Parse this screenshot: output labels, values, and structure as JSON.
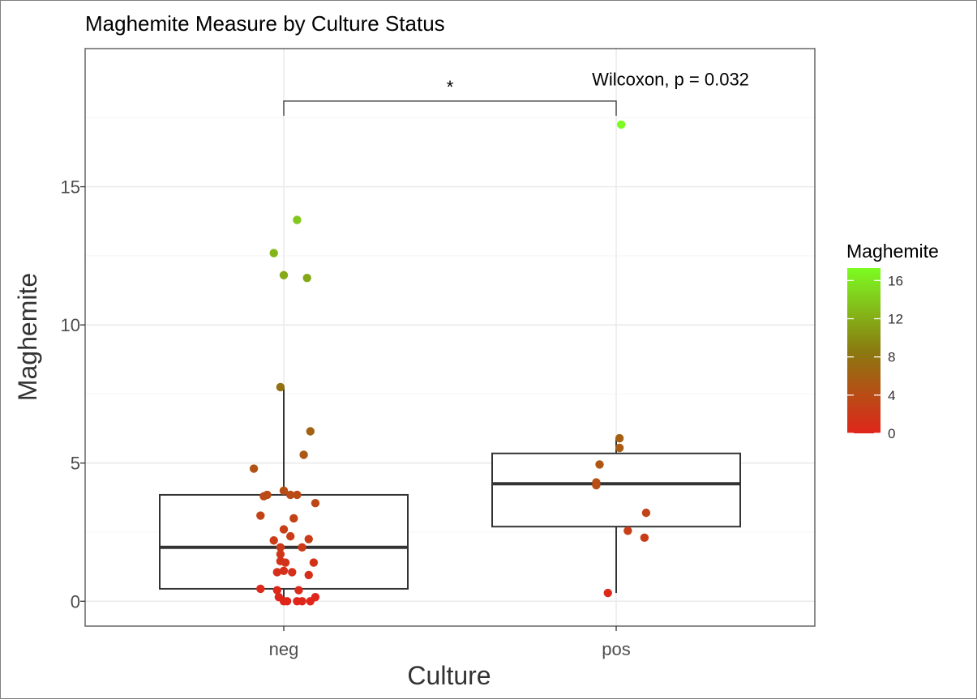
{
  "chart_data": {
    "type": "box",
    "title": "Maghemite Measure by Culture Status",
    "xlabel": "Culture",
    "ylabel": "Maghemite",
    "categories": [
      "neg",
      "pos"
    ],
    "ylim": [
      -0.9,
      20
    ],
    "y_ticks": [
      0,
      5,
      10,
      15
    ],
    "y_tick_labels": [
      "0",
      "5",
      "10",
      "15"
    ],
    "grid": true,
    "boxes": [
      {
        "category": "neg",
        "lower_whisker": 0.0,
        "q1": 0.45,
        "median": 1.95,
        "q3": 3.85,
        "upper_whisker": 7.75
      },
      {
        "category": "pos",
        "lower_whisker": 0.3,
        "q1": 2.7,
        "median": 4.25,
        "q3": 5.35,
        "upper_whisker": 5.9
      }
    ],
    "points": [
      {
        "category": "neg",
        "jitter": 0.04,
        "y": 13.8
      },
      {
        "category": "neg",
        "jitter": -0.03,
        "y": 12.6
      },
      {
        "category": "neg",
        "jitter": 0.0,
        "y": 11.8
      },
      {
        "category": "neg",
        "jitter": 0.07,
        "y": 11.7
      },
      {
        "category": "neg",
        "jitter": -0.01,
        "y": 7.75
      },
      {
        "category": "neg",
        "jitter": 0.08,
        "y": 6.15
      },
      {
        "category": "neg",
        "jitter": 0.06,
        "y": 5.3
      },
      {
        "category": "neg",
        "jitter": -0.09,
        "y": 4.8
      },
      {
        "category": "neg",
        "jitter": 0.0,
        "y": 4.0
      },
      {
        "category": "neg",
        "jitter": -0.06,
        "y": 3.8
      },
      {
        "category": "neg",
        "jitter": -0.05,
        "y": 3.85
      },
      {
        "category": "neg",
        "jitter": 0.02,
        "y": 3.85
      },
      {
        "category": "neg",
        "jitter": 0.04,
        "y": 3.85
      },
      {
        "category": "neg",
        "jitter": 0.095,
        "y": 3.55
      },
      {
        "category": "neg",
        "jitter": -0.07,
        "y": 3.1
      },
      {
        "category": "neg",
        "jitter": 0.03,
        "y": 3.0
      },
      {
        "category": "neg",
        "jitter": 0.0,
        "y": 2.6
      },
      {
        "category": "neg",
        "jitter": 0.02,
        "y": 2.35
      },
      {
        "category": "neg",
        "jitter": -0.03,
        "y": 2.2
      },
      {
        "category": "neg",
        "jitter": 0.075,
        "y": 2.25
      },
      {
        "category": "neg",
        "jitter": -0.01,
        "y": 1.95
      },
      {
        "category": "neg",
        "jitter": 0.055,
        "y": 1.95
      },
      {
        "category": "neg",
        "jitter": -0.01,
        "y": 1.7
      },
      {
        "category": "neg",
        "jitter": -0.01,
        "y": 1.45
      },
      {
        "category": "neg",
        "jitter": 0.005,
        "y": 1.4
      },
      {
        "category": "neg",
        "jitter": 0.09,
        "y": 1.4
      },
      {
        "category": "neg",
        "jitter": -0.02,
        "y": 1.05
      },
      {
        "category": "neg",
        "jitter": 0.0,
        "y": 1.1
      },
      {
        "category": "neg",
        "jitter": 0.025,
        "y": 1.05
      },
      {
        "category": "neg",
        "jitter": 0.075,
        "y": 0.95
      },
      {
        "category": "neg",
        "jitter": -0.07,
        "y": 0.45
      },
      {
        "category": "neg",
        "jitter": -0.02,
        "y": 0.4
      },
      {
        "category": "neg",
        "jitter": 0.045,
        "y": 0.4
      },
      {
        "category": "neg",
        "jitter": -0.015,
        "y": 0.15
      },
      {
        "category": "neg",
        "jitter": 0.0,
        "y": 0.0
      },
      {
        "category": "neg",
        "jitter": 0.01,
        "y": 0.0
      },
      {
        "category": "neg",
        "jitter": 0.04,
        "y": 0.0
      },
      {
        "category": "neg",
        "jitter": 0.055,
        "y": 0.0
      },
      {
        "category": "neg",
        "jitter": 0.08,
        "y": 0.0
      },
      {
        "category": "neg",
        "jitter": 0.095,
        "y": 0.15
      },
      {
        "category": "pos",
        "jitter": 0.015,
        "y": 17.25
      },
      {
        "category": "pos",
        "jitter": 0.01,
        "y": 5.9
      },
      {
        "category": "pos",
        "jitter": 0.01,
        "y": 5.55
      },
      {
        "category": "pos",
        "jitter": -0.05,
        "y": 4.95
      },
      {
        "category": "pos",
        "jitter": -0.06,
        "y": 4.3
      },
      {
        "category": "pos",
        "jitter": -0.06,
        "y": 4.2
      },
      {
        "category": "pos",
        "jitter": 0.09,
        "y": 3.2
      },
      {
        "category": "pos",
        "jitter": 0.035,
        "y": 2.55
      },
      {
        "category": "pos",
        "jitter": 0.085,
        "y": 2.3
      },
      {
        "category": "pos",
        "jitter": -0.025,
        "y": 0.3
      }
    ],
    "significance": {
      "from": "neg",
      "to": "pos",
      "y": 18.1,
      "label": "*",
      "test_label": "Wilcoxon, p = 0.032",
      "test_label_y": 18.9
    },
    "legend": {
      "title": "Maghemite",
      "placement": "right",
      "range": [
        0,
        17.3
      ],
      "ticks": [
        0,
        4,
        8,
        12,
        16
      ],
      "tick_labels": [
        "0",
        "4",
        "8",
        "12",
        "16"
      ],
      "low_color": "#e0251a",
      "mid_color": "#8a7a10",
      "high_color": "#7cfc22"
    },
    "colors": {
      "panel_border": "#4d4d4d",
      "grid_major": "#ebebeb",
      "grid_minor": "#f5f5f5",
      "box_line": "#333333"
    }
  }
}
